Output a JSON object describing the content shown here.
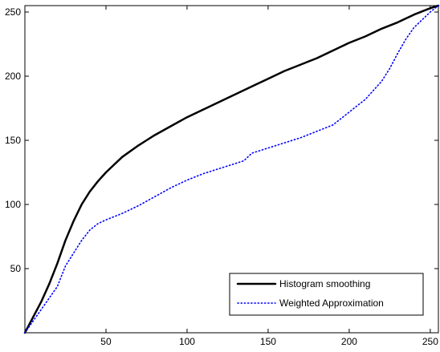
{
  "chart_data": {
    "type": "line",
    "title": "",
    "xlabel": "",
    "ylabel": "",
    "xlim": [
      0,
      255
    ],
    "ylim": [
      0,
      255
    ],
    "xticks": [
      50,
      100,
      150,
      200,
      250
    ],
    "xtick_labels": [
      "50",
      "100",
      "150",
      "200",
      "250"
    ],
    "yticks": [
      50,
      100,
      150,
      200,
      250
    ],
    "ytick_labels": [
      "50",
      "100",
      "150",
      "200",
      "250"
    ],
    "grid": false,
    "legend_position": "bottom-right",
    "series": [
      {
        "name": "Histogram smoothing",
        "color": "#000000",
        "style": "solid",
        "x": [
          0,
          5,
          10,
          15,
          20,
          25,
          30,
          35,
          40,
          45,
          50,
          55,
          60,
          70,
          75,
          80,
          90,
          100,
          110,
          120,
          130,
          140,
          150,
          160,
          170,
          180,
          190,
          200,
          210,
          220,
          230,
          240,
          250,
          255
        ],
        "y": [
          0,
          12,
          24,
          38,
          54,
          72,
          87,
          100,
          110,
          118,
          125,
          131,
          137,
          146,
          150,
          154,
          161,
          168,
          174,
          180,
          186,
          192,
          198,
          204,
          209,
          214,
          220,
          226,
          231,
          237,
          242,
          248,
          253,
          255
        ]
      },
      {
        "name": "Weighted Approximation",
        "color": "#0000ff",
        "style": "dotted",
        "x": [
          0,
          5,
          10,
          15,
          20,
          25,
          30,
          35,
          40,
          45,
          50,
          60,
          70,
          80,
          90,
          100,
          110,
          120,
          130,
          135,
          140,
          150,
          160,
          170,
          180,
          190,
          200,
          210,
          220,
          225,
          230,
          235,
          240,
          245,
          250,
          255
        ],
        "y": [
          0,
          9,
          18,
          27,
          36,
          52,
          62,
          72,
          80,
          85,
          88,
          93,
          99,
          106,
          113,
          119,
          124,
          128,
          132,
          134,
          140,
          144,
          148,
          152,
          157,
          162,
          172,
          182,
          196,
          206,
          218,
          229,
          238,
          244,
          250,
          255
        ]
      }
    ]
  }
}
